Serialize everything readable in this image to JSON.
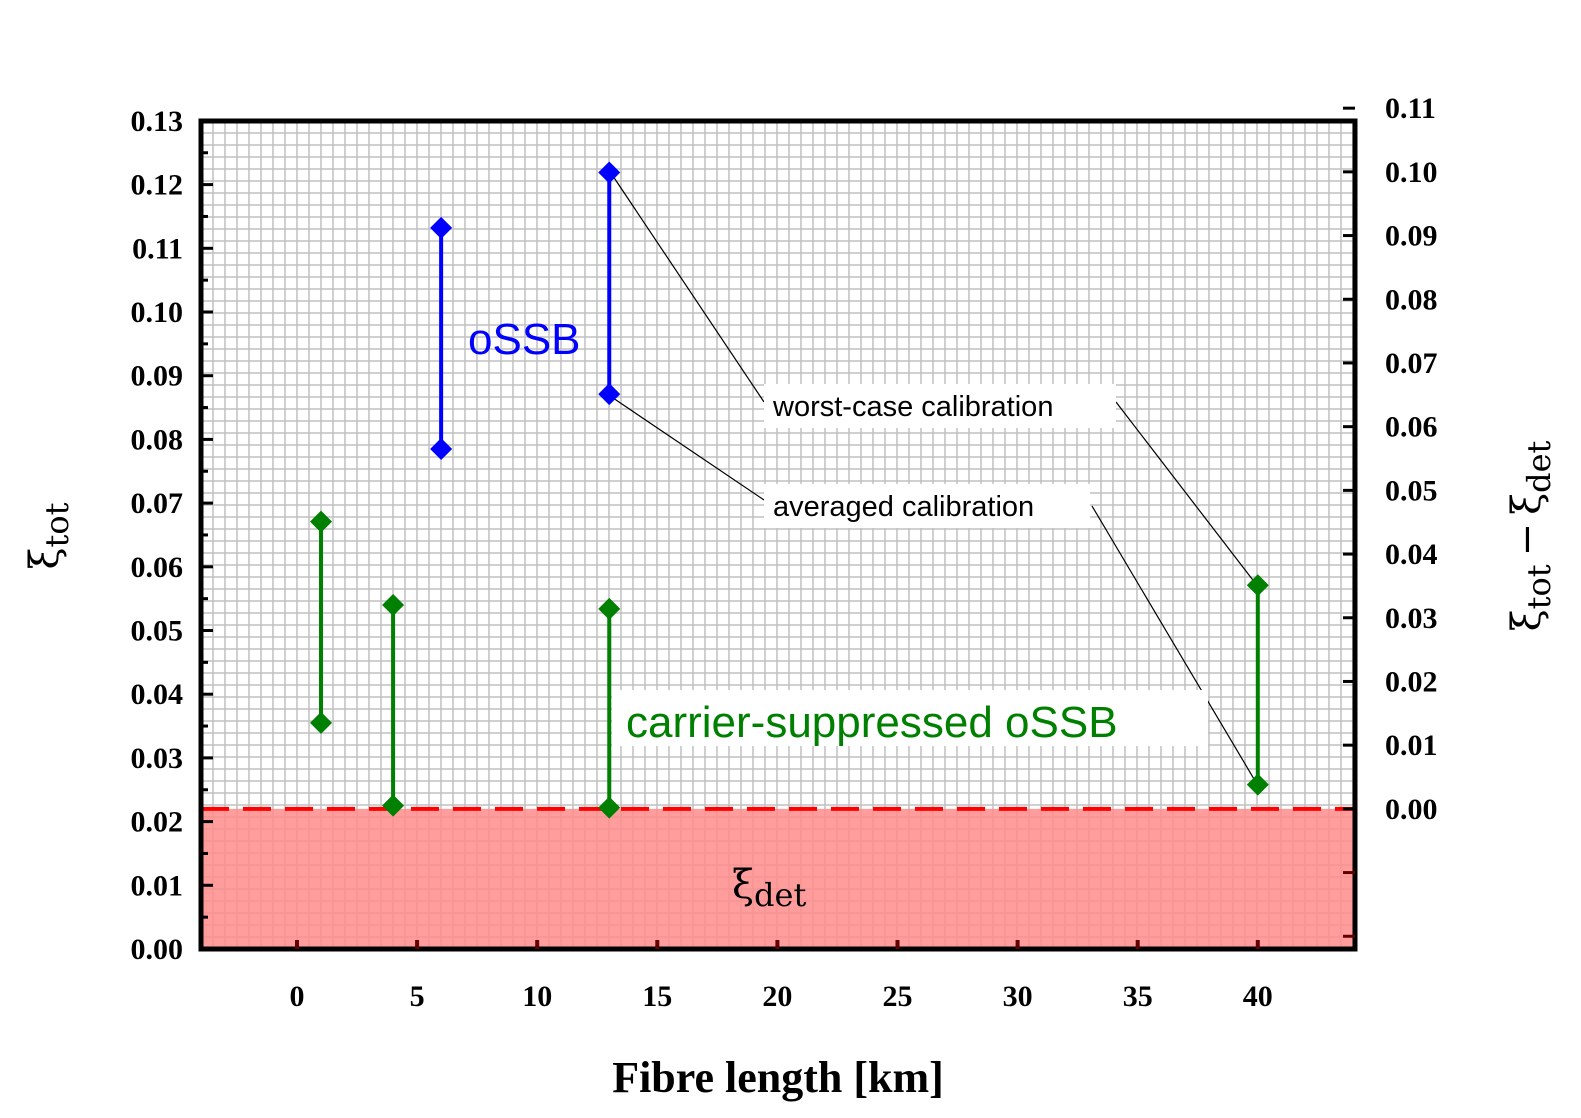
{
  "chart_data": {
    "type": "range",
    "xlabel": "Fibre length [km]",
    "ylabel_left": {
      "base": "ξ",
      "sub": "tot"
    },
    "ylabel_right": {
      "a": "ξ",
      "a_sub": "tot",
      "op": "−",
      "b": "ξ",
      "b_sub": "det"
    },
    "xlim": [
      -4,
      44
    ],
    "ylim_left": [
      0,
      0.13
    ],
    "ylim_right": [
      -0.022,
      0.108
    ],
    "x_ticks": [
      "0",
      "5",
      "10",
      "15",
      "20",
      "25",
      "30",
      "35",
      "40"
    ],
    "x_tick_values": [
      0,
      5,
      10,
      15,
      20,
      25,
      30,
      35,
      40
    ],
    "y_ticks_left": [
      "0.00",
      "0.01",
      "0.02",
      "0.03",
      "0.04",
      "0.05",
      "0.06",
      "0.07",
      "0.08",
      "0.09",
      "0.10",
      "0.11",
      "0.12",
      "0.13"
    ],
    "y_tick_values_left": [
      0,
      0.01,
      0.02,
      0.03,
      0.04,
      0.05,
      0.06,
      0.07,
      0.08,
      0.09,
      0.1,
      0.11,
      0.12,
      0.13
    ],
    "y_ticks_right": [
      "0.00",
      "0.01",
      "0.02",
      "0.03",
      "0.04",
      "0.05",
      "0.06",
      "0.07",
      "0.08",
      "0.09",
      "0.10",
      "0.11"
    ],
    "y_tick_values_right": [
      0,
      0.01,
      0.02,
      0.03,
      0.04,
      0.05,
      0.06,
      0.07,
      0.08,
      0.09,
      0.1,
      0.11
    ],
    "grid": true,
    "threshold": {
      "value": 0.022,
      "label": {
        "base": "ξ",
        "sub": "det"
      },
      "fill_color": "#ff8c8c",
      "line_color": "#ff0000"
    },
    "series": [
      {
        "name": "oSSB",
        "color": "#0000ff",
        "ranges": [
          {
            "x": 6,
            "low": 0.0785,
            "high": 0.1132
          },
          {
            "x": 13,
            "low": 0.0871,
            "high": 0.1219
          }
        ]
      },
      {
        "name": "carrier-suppressed oSSB",
        "color": "#008000",
        "ranges": [
          {
            "x": 1,
            "low": 0.0355,
            "high": 0.0671
          },
          {
            "x": 4,
            "low": 0.0225,
            "high": 0.054
          },
          {
            "x": 13,
            "low": 0.0222,
            "high": 0.0534
          },
          {
            "x": 40,
            "low": 0.0258,
            "high": 0.0571
          }
        ]
      }
    ],
    "annotations": [
      {
        "text": "worst-case calibration",
        "points_to": [
          [
            13,
            0.1219
          ],
          [
            40,
            0.0571
          ]
        ]
      },
      {
        "text": "averaged calibration",
        "points_to": [
          [
            13,
            0.0871
          ],
          [
            40,
            0.0258
          ]
        ]
      }
    ]
  }
}
